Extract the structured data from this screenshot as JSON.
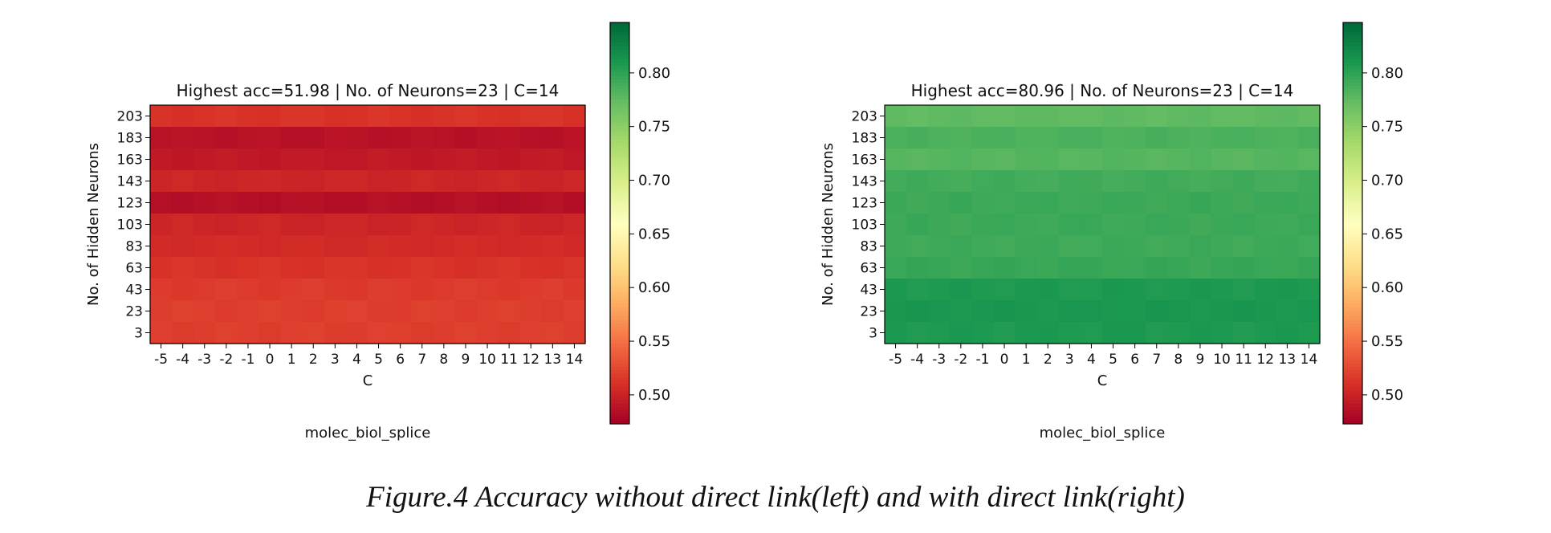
{
  "figure": {
    "caption": "Figure.4 Accuracy without direct link(left) and with direct link(right)"
  },
  "colorbar": {
    "colormap": "RdYlGn",
    "range": [
      0.473,
      0.847
    ],
    "ticks": [
      "0.50",
      "0.55",
      "0.60",
      "0.65",
      "0.70",
      "0.75",
      "0.80"
    ]
  },
  "chart_data": [
    {
      "type": "heatmap",
      "title": "Highest acc=51.98 | No. of Neurons=23 | C=14",
      "xlabel": "C",
      "ylabel": "No. of Hidden Neurons",
      "subtitle": "molec_biol_splice",
      "x": [
        "-5",
        "-4",
        "-3",
        "-2",
        "-1",
        "0",
        "1",
        "2",
        "3",
        "4",
        "5",
        "6",
        "7",
        "8",
        "9",
        "10",
        "11",
        "12",
        "13",
        "14"
      ],
      "y": [
        "203",
        "183",
        "163",
        "143",
        "123",
        "103",
        "83",
        "63",
        "43",
        "23",
        "3"
      ],
      "row_values": [
        0.512,
        0.487,
        0.493,
        0.502,
        0.485,
        0.502,
        0.506,
        0.512,
        0.517,
        0.519,
        0.519
      ],
      "colorbar_ticks": [
        0.5,
        0.55,
        0.6,
        0.65,
        0.7,
        0.75,
        0.8
      ]
    },
    {
      "type": "heatmap",
      "title": "Highest acc=80.96 | No. of Neurons=23 | C=14",
      "xlabel": "C",
      "ylabel": "No. of Hidden Neurons",
      "subtitle": "molec_biol_splice",
      "x": [
        "-5",
        "-4",
        "-3",
        "-2",
        "-1",
        "0",
        "1",
        "2",
        "3",
        "4",
        "5",
        "6",
        "7",
        "8",
        "9",
        "10",
        "11",
        "12",
        "13",
        "14"
      ],
      "y": [
        "203",
        "183",
        "163",
        "143",
        "123",
        "103",
        "83",
        "63",
        "43",
        "23",
        "3"
      ],
      "row_values": [
        0.775,
        0.785,
        0.78,
        0.79,
        0.793,
        0.793,
        0.792,
        0.795,
        0.808,
        0.81,
        0.808
      ],
      "colorbar_ticks": [
        0.5,
        0.55,
        0.6,
        0.65,
        0.7,
        0.75,
        0.8
      ]
    }
  ]
}
